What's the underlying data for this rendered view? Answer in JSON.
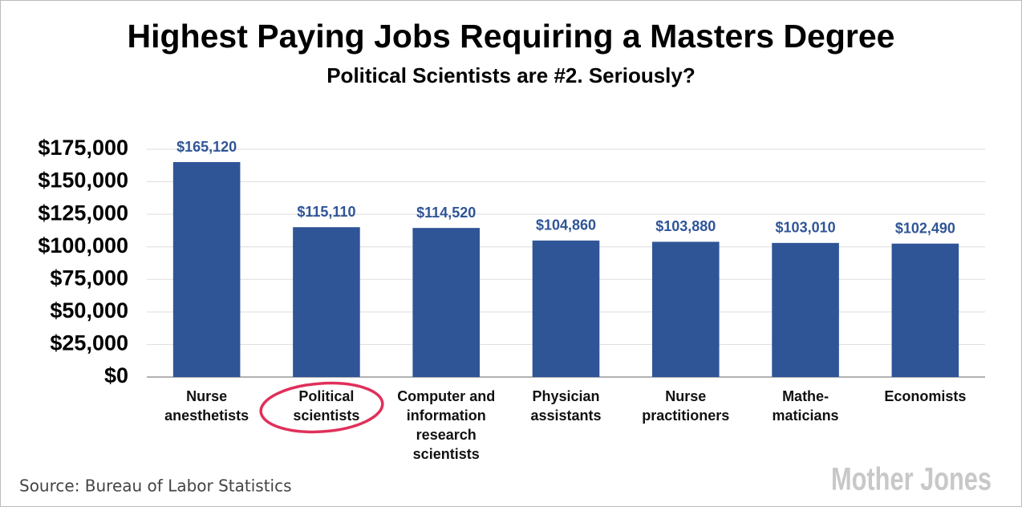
{
  "chart_data": {
    "type": "bar",
    "title": "Highest Paying Jobs Requiring a Masters Degree",
    "subtitle": "Political Scientists are #2. Seriously?",
    "categories": [
      "Nurse\nanesthetists",
      "Political\nscientists",
      "Computer and\ninformation\nresearch\nscientists",
      "Physician\nassistants",
      "Nurse\npractitioners",
      "Mathe-\nmaticians",
      "Economists"
    ],
    "values": [
      165120,
      115110,
      114520,
      104860,
      103880,
      103010,
      102490
    ],
    "value_labels": [
      "$165,120",
      "$115,110",
      "$114,520",
      "$104,860",
      "$103,880",
      "$103,010",
      "$102,490"
    ],
    "color": "#2f5597",
    "ylim": [
      0,
      175000
    ],
    "yticks": [
      {
        "value": 0,
        "label": "$0"
      },
      {
        "value": 25000,
        "label": "$25,000"
      },
      {
        "value": 50000,
        "label": "$50,000"
      },
      {
        "value": 75000,
        "label": "$75,000"
      },
      {
        "value": 100000,
        "label": "$100,000"
      },
      {
        "value": 125000,
        "label": "$125,000"
      },
      {
        "value": 150000,
        "label": "$150,000"
      },
      {
        "value": 175000,
        "label": "$175,000"
      }
    ],
    "grid": true,
    "source": "Source: Bureau of Labor Statistics",
    "logo": "Mother Jones"
  }
}
